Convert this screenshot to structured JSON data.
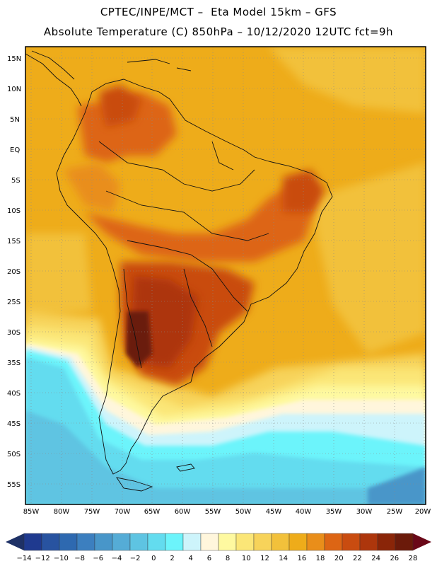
{
  "header": {
    "title_line1": "CPTEC/INPE/MCT –  Eta Model 15km – GFS",
    "title_line2": "Absolute Temperature (C) 850hPa – 10/12/2020 12UTC fct=9h"
  },
  "axes": {
    "lat_labels": [
      "15N",
      "10N",
      "5N",
      "EQ",
      "5S",
      "10S",
      "15S",
      "20S",
      "25S",
      "30S",
      "35S",
      "40S",
      "45S",
      "50S",
      "55S"
    ],
    "lon_labels": [
      "85W",
      "80W",
      "75W",
      "70W",
      "65W",
      "60W",
      "55W",
      "50W",
      "45W",
      "40W",
      "35W",
      "30W",
      "25W",
      "20W"
    ]
  },
  "colorbar": {
    "labels": [
      "-14",
      "-12",
      "-10",
      "-8",
      "-6",
      "-4",
      "-2",
      "0",
      "2",
      "4",
      "6",
      "8",
      "10",
      "12",
      "14",
      "16",
      "18",
      "20",
      "22",
      "24",
      "26",
      "28"
    ],
    "colors": [
      "#1f3a8f",
      "#2853a0",
      "#2e69b0",
      "#3c7fbf",
      "#4896c9",
      "#55acd6",
      "#5ec4e2",
      "#63dcef",
      "#6cf4fb",
      "#cdf4fb",
      "#fff6dc",
      "#fef9a0",
      "#fbe677",
      "#f7d35a",
      "#f2c13b",
      "#eeac1a",
      "#e98e1a",
      "#dd6514",
      "#c94c10",
      "#ad360c",
      "#8a2508",
      "#6b1a0a"
    ],
    "under_color": "#1e3166",
    "over_color": "#6a0818"
  }
}
